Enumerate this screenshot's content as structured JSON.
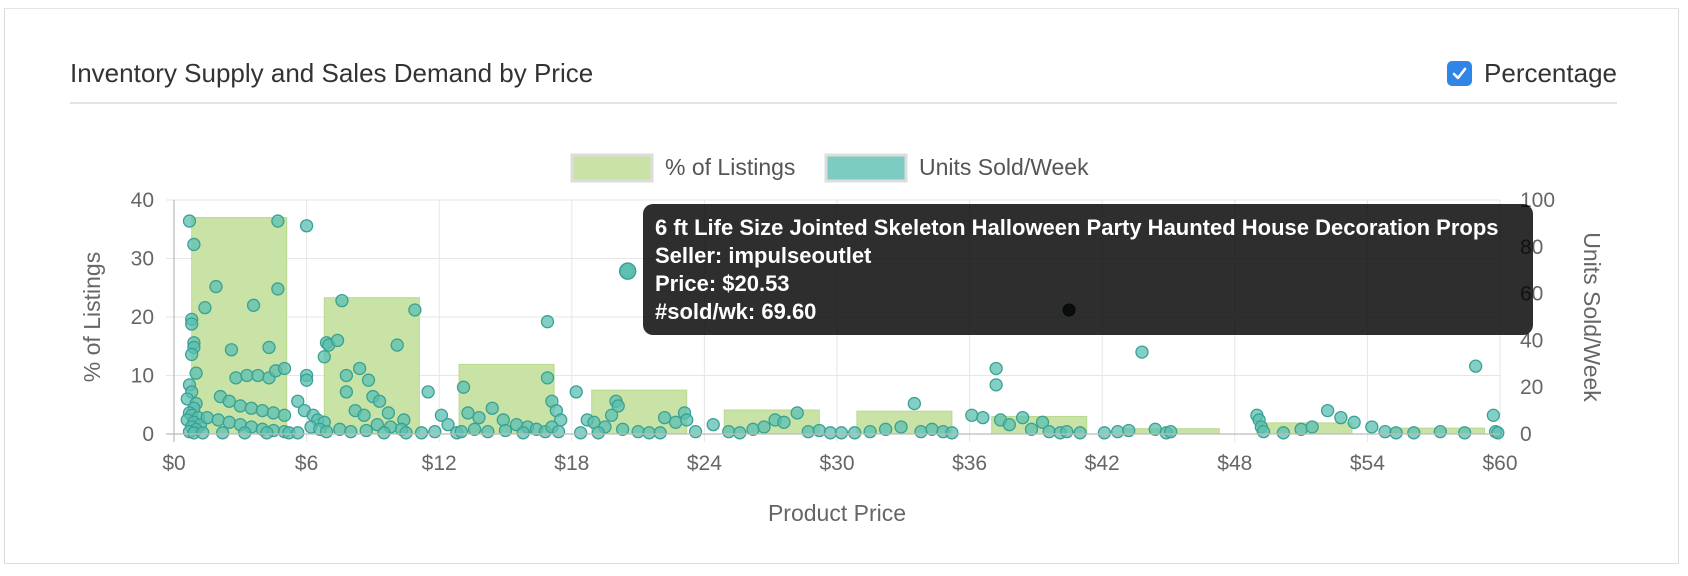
{
  "header": {
    "title": "Inventory Supply and Sales Demand by Price",
    "percentage_label": "Percentage",
    "percentage_checked": true
  },
  "tooltip": {
    "name": "6 ft Life Size Jointed Skeleton Halloween Party Haunted House Decoration Props",
    "seller": "Seller: impulseoutlet",
    "price": "Price: $20.53",
    "sold": "#sold/wk: 69.60"
  },
  "colors": {
    "bar_fill": "#c8e3a5",
    "bar_stroke": "#b9d98f",
    "point_fill": "#5bbfb1",
    "point_stroke": "#3aa191",
    "checkbox": "#2f86e8"
  },
  "chart_data": {
    "type": "bar+scatter",
    "legend": [
      "% of Listings",
      "Units Sold/Week"
    ],
    "legend_position": "top-center",
    "xlabel": "Product Price",
    "ylabel_left": "% of Listings",
    "ylabel_right": "Units Sold/Week",
    "x_ticks": [
      "$0",
      "$6",
      "$12",
      "$18",
      "$24",
      "$30",
      "$36",
      "$42",
      "$48",
      "$54",
      "$60"
    ],
    "y_left_ticks": [
      "0",
      "10",
      "20",
      "30",
      "40"
    ],
    "y_right_ticks": [
      "0",
      "20",
      "40",
      "60",
      "80",
      "100"
    ],
    "xlim": [
      0,
      60
    ],
    "ylim_left": [
      0,
      40
    ],
    "ylim_right": [
      0,
      100
    ],
    "grid": true,
    "bars": [
      {
        "x0": 0.8,
        "x1": 5.1,
        "value": 37.0
      },
      {
        "x0": 6.8,
        "x1": 11.1,
        "value": 23.3
      },
      {
        "x0": 12.9,
        "x1": 17.2,
        "value": 11.9
      },
      {
        "x0": 18.9,
        "x1": 23.2,
        "value": 7.5
      },
      {
        "x0": 24.9,
        "x1": 29.2,
        "value": 4.1
      },
      {
        "x0": 30.9,
        "x1": 35.2,
        "value": 3.9
      },
      {
        "x0": 37.0,
        "x1": 41.3,
        "value": 3.0
      },
      {
        "x0": 43.0,
        "x1": 47.3,
        "value": 0.9
      },
      {
        "x0": 49.0,
        "x1": 53.3,
        "value": 1.9
      },
      {
        "x0": 55.0,
        "x1": 59.3,
        "value": 1.0
      }
    ],
    "points": [
      [
        0.7,
        91
      ],
      [
        0.9,
        81
      ],
      [
        0.8,
        49
      ],
      [
        0.8,
        47
      ],
      [
        0.9,
        39
      ],
      [
        0.9,
        37
      ],
      [
        0.8,
        34
      ],
      [
        1.0,
        26
      ],
      [
        0.7,
        21
      ],
      [
        0.8,
        18
      ],
      [
        0.6,
        15
      ],
      [
        1.0,
        13
      ],
      [
        0.9,
        11
      ],
      [
        0.7,
        9
      ],
      [
        0.8,
        8
      ],
      [
        1.1,
        7
      ],
      [
        0.6,
        6
      ],
      [
        0.9,
        5
      ],
      [
        1.2,
        4
      ],
      [
        0.8,
        3
      ],
      [
        1.0,
        2
      ],
      [
        0.7,
        1
      ],
      [
        0.9,
        0.5
      ],
      [
        1.4,
        54
      ],
      [
        1.9,
        63
      ],
      [
        2.6,
        36
      ],
      [
        2.8,
        24
      ],
      [
        3.3,
        25
      ],
      [
        3.8,
        25
      ],
      [
        4.3,
        24
      ],
      [
        4.6,
        27
      ],
      [
        5.0,
        28
      ],
      [
        4.3,
        37
      ],
      [
        4.7,
        62
      ],
      [
        4.7,
        91
      ],
      [
        3.6,
        55
      ],
      [
        2.1,
        16
      ],
      [
        2.5,
        14
      ],
      [
        3.0,
        12
      ],
      [
        3.5,
        11
      ],
      [
        4.0,
        10
      ],
      [
        4.5,
        9
      ],
      [
        5.0,
        8
      ],
      [
        1.5,
        7
      ],
      [
        2.0,
        6
      ],
      [
        2.5,
        5
      ],
      [
        3.0,
        4
      ],
      [
        3.5,
        3
      ],
      [
        4.0,
        2
      ],
      [
        4.5,
        1.5
      ],
      [
        5.0,
        1
      ],
      [
        1.3,
        0.5
      ],
      [
        2.2,
        0.5
      ],
      [
        3.2,
        0.5
      ],
      [
        4.2,
        0.5
      ],
      [
        5.2,
        0.5
      ],
      [
        5.6,
        0.5
      ],
      [
        6.0,
        89
      ],
      [
        6.0,
        25
      ],
      [
        6.0,
        23
      ],
      [
        5.6,
        14
      ],
      [
        5.9,
        10
      ],
      [
        6.3,
        8
      ],
      [
        6.5,
        6
      ],
      [
        6.8,
        5
      ],
      [
        6.2,
        3
      ],
      [
        6.6,
        2
      ],
      [
        6.9,
        1
      ],
      [
        6.9,
        39
      ],
      [
        7.0,
        38
      ],
      [
        6.8,
        33
      ],
      [
        7.4,
        40
      ],
      [
        7.6,
        57
      ],
      [
        7.8,
        18
      ],
      [
        7.8,
        25
      ],
      [
        8.4,
        28
      ],
      [
        8.8,
        23
      ],
      [
        9.0,
        16
      ],
      [
        9.3,
        14
      ],
      [
        9.7,
        9
      ],
      [
        10.1,
        38
      ],
      [
        10.4,
        6
      ],
      [
        8.2,
        10
      ],
      [
        8.6,
        8
      ],
      [
        9.2,
        4
      ],
      [
        9.8,
        3
      ],
      [
        10.3,
        2
      ],
      [
        10.9,
        53
      ],
      [
        11.5,
        18
      ],
      [
        7.5,
        2
      ],
      [
        8.0,
        1
      ],
      [
        8.7,
        1.5
      ],
      [
        9.5,
        0.5
      ],
      [
        10.5,
        0.5
      ],
      [
        11.2,
        0.5
      ],
      [
        11.8,
        1
      ],
      [
        12.1,
        8
      ],
      [
        12.4,
        4
      ],
      [
        13.1,
        20
      ],
      [
        13.3,
        9
      ],
      [
        13.8,
        7
      ],
      [
        14.4,
        11
      ],
      [
        14.9,
        6
      ],
      [
        15.5,
        4
      ],
      [
        16.0,
        3
      ],
      [
        16.4,
        2
      ],
      [
        16.8,
        1
      ],
      [
        13.6,
        2
      ],
      [
        14.2,
        1
      ],
      [
        15.0,
        1.5
      ],
      [
        15.8,
        0.5
      ],
      [
        12.8,
        0.5
      ],
      [
        13.0,
        1
      ],
      [
        16.9,
        48
      ],
      [
        16.9,
        24
      ],
      [
        17.1,
        14
      ],
      [
        17.3,
        10
      ],
      [
        17.5,
        6
      ],
      [
        17.1,
        3
      ],
      [
        17.4,
        1
      ],
      [
        18.2,
        18
      ],
      [
        18.7,
        6
      ],
      [
        19.0,
        5
      ],
      [
        19.5,
        3
      ],
      [
        20.0,
        14
      ],
      [
        20.1,
        12
      ],
      [
        19.8,
        8
      ],
      [
        20.3,
        2
      ],
      [
        21.0,
        1
      ],
      [
        21.5,
        0.5
      ],
      [
        22.2,
        7
      ],
      [
        22.7,
        5
      ],
      [
        23.1,
        9
      ],
      [
        23.2,
        6
      ],
      [
        23.6,
        1
      ],
      [
        22.0,
        0.5
      ],
      [
        18.4,
        0.5
      ],
      [
        19.2,
        0.5
      ],
      [
        20.53,
        69.6
      ],
      [
        24.4,
        4
      ],
      [
        25.1,
        1
      ],
      [
        25.6,
        0.5
      ],
      [
        26.2,
        2
      ],
      [
        26.7,
        3
      ],
      [
        27.2,
        6
      ],
      [
        27.6,
        5
      ],
      [
        28.2,
        9
      ],
      [
        28.7,
        1
      ],
      [
        29.2,
        1.5
      ],
      [
        29.7,
        0.5
      ],
      [
        30.2,
        0.5
      ],
      [
        30.8,
        0.5
      ],
      [
        31.5,
        1
      ],
      [
        32.2,
        2
      ],
      [
        32.9,
        3
      ],
      [
        33.5,
        13
      ],
      [
        33.8,
        1
      ],
      [
        34.3,
        2
      ],
      [
        34.8,
        1
      ],
      [
        35.2,
        0.5
      ],
      [
        36.1,
        8
      ],
      [
        36.6,
        7
      ],
      [
        37.2,
        28
      ],
      [
        37.2,
        21
      ],
      [
        37.4,
        6
      ],
      [
        37.8,
        4
      ],
      [
        38.4,
        7
      ],
      [
        38.8,
        2
      ],
      [
        39.3,
        5
      ],
      [
        39.6,
        1
      ],
      [
        40.1,
        0.5
      ],
      [
        40.4,
        1
      ],
      [
        41.0,
        0.5
      ],
      [
        42.1,
        0.5
      ],
      [
        42.7,
        1
      ],
      [
        43.2,
        1.5
      ],
      [
        43.8,
        35
      ],
      [
        44.4,
        2
      ],
      [
        44.9,
        0.5
      ],
      [
        45.1,
        1
      ],
      [
        49.0,
        8
      ],
      [
        49.1,
        6
      ],
      [
        49.2,
        3
      ],
      [
        49.3,
        1
      ],
      [
        50.2,
        0.5
      ],
      [
        51.0,
        2
      ],
      [
        51.5,
        3
      ],
      [
        52.2,
        10
      ],
      [
        52.8,
        7
      ],
      [
        53.4,
        5
      ],
      [
        54.2,
        3
      ],
      [
        54.8,
        1
      ],
      [
        55.3,
        0.5
      ],
      [
        56.1,
        0.5
      ],
      [
        57.3,
        1
      ],
      [
        58.4,
        0.5
      ],
      [
        58.9,
        29
      ],
      [
        59.7,
        8
      ],
      [
        59.8,
        1
      ],
      [
        59.9,
        0.5
      ]
    ],
    "highlight_point": [
      20.53,
      69.6
    ],
    "dark_point": [
      40.5,
      53
    ]
  }
}
